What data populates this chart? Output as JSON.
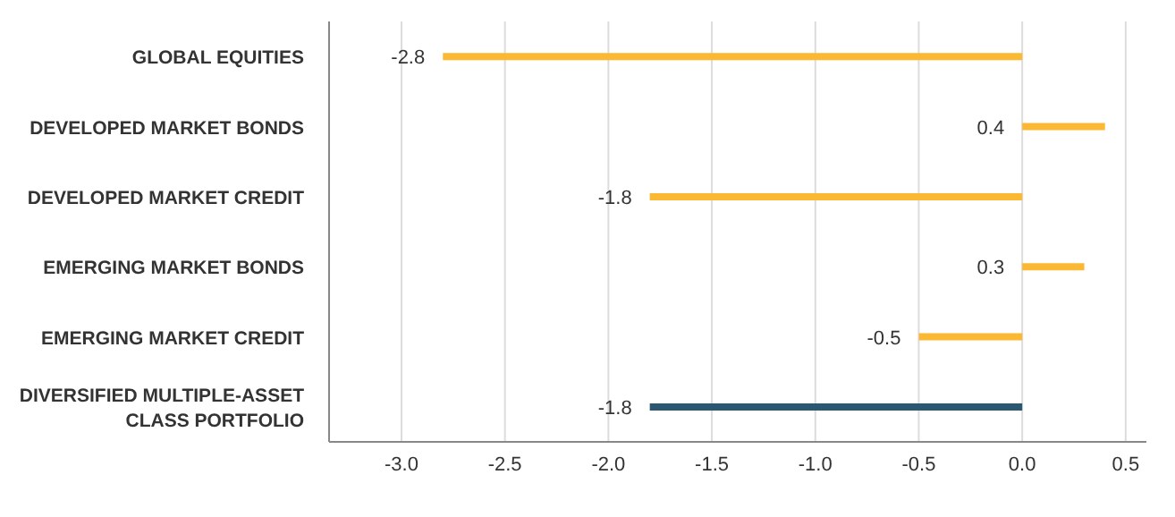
{
  "chart_data": {
    "type": "bar",
    "orientation": "horizontal",
    "categories": [
      "GLOBAL EQUITIES",
      "DEVELOPED MARKET BONDS",
      "DEVELOPED MARKET CREDIT",
      "EMERGING MARKET BONDS",
      "EMERGING MARKET CREDIT",
      "DIVERSIFIED MULTIPLE-ASSET CLASS PORTFOLIO"
    ],
    "values": [
      -2.8,
      0.4,
      -1.8,
      0.3,
      -0.5,
      -1.8
    ],
    "colors": [
      "#fbb832",
      "#fbb832",
      "#fbb832",
      "#fbb832",
      "#fbb832",
      "#2b5773"
    ],
    "xlim": [
      -3.35,
      0.6
    ],
    "xticks": [
      {
        "value": -3,
        "label": "-3.0"
      },
      {
        "value": -2.5,
        "label": "-2.5"
      },
      {
        "value": -2,
        "label": "-2.0"
      },
      {
        "value": -1.5,
        "label": "-1.5"
      },
      {
        "value": -1,
        "label": "-1.0"
      },
      {
        "value": -0.5,
        "label": "-0.5"
      },
      {
        "value": 0,
        "label": "0.0"
      },
      {
        "value": 0.5,
        "label": "0.5"
      }
    ],
    "grid": "x",
    "data_labels": true
  }
}
